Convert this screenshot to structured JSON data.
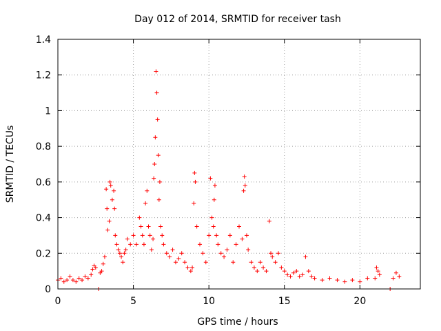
{
  "chart_data": {
    "type": "scatter",
    "title": "Day 012 of 2014, SRMTID for receiver tash",
    "xlabel": "GPS time / hours",
    "ylabel": "SRMTID / TECUs",
    "xlim": [
      0,
      24
    ],
    "ylim": [
      0,
      1.4
    ],
    "xticks": [
      0,
      5,
      10,
      15,
      20
    ],
    "xtick_labels": [
      "0",
      "5",
      "10",
      "15",
      "20"
    ],
    "yticks": [
      0,
      0.2,
      0.4,
      0.6,
      0.8,
      1.0,
      1.2,
      1.4
    ],
    "ytick_labels": [
      "0",
      "0.2",
      "0.4",
      "0.6",
      "0.8",
      "1",
      "1.2",
      "1.4"
    ],
    "grid": true,
    "marker": "+",
    "marker_color": "#ff0000",
    "series": [
      {
        "name": "SRMTID",
        "x": [
          0.0,
          0.2,
          0.4,
          0.6,
          0.8,
          1.0,
          1.2,
          1.4,
          1.6,
          1.8,
          2.0,
          2.2,
          2.3,
          2.4,
          2.5,
          2.7,
          2.8,
          2.9,
          3.0,
          3.1,
          3.2,
          3.25,
          3.3,
          3.4,
          3.45,
          3.5,
          3.6,
          3.7,
          3.75,
          3.8,
          3.9,
          4.0,
          4.1,
          4.2,
          4.3,
          4.4,
          4.5,
          4.6,
          4.8,
          5.0,
          5.2,
          5.4,
          5.5,
          5.6,
          5.7,
          5.8,
          5.9,
          6.0,
          6.1,
          6.2,
          6.3,
          6.35,
          6.4,
          6.45,
          6.5,
          6.55,
          6.6,
          6.65,
          6.7,
          6.75,
          6.8,
          6.9,
          7.0,
          7.2,
          7.4,
          7.6,
          7.8,
          8.0,
          8.2,
          8.4,
          8.6,
          8.8,
          8.9,
          9.0,
          9.05,
          9.1,
          9.2,
          9.4,
          9.6,
          9.8,
          10.0,
          10.1,
          10.2,
          10.3,
          10.35,
          10.4,
          10.5,
          10.6,
          10.8,
          11.0,
          11.2,
          11.4,
          11.6,
          11.8,
          12.0,
          12.2,
          12.3,
          12.35,
          12.4,
          12.5,
          12.6,
          12.8,
          13.0,
          13.2,
          13.4,
          13.6,
          13.8,
          14.0,
          14.1,
          14.2,
          14.4,
          14.6,
          14.8,
          15.0,
          15.2,
          15.4,
          15.6,
          15.8,
          16.0,
          16.2,
          16.4,
          16.6,
          16.8,
          17.0,
          17.5,
          18.0,
          18.5,
          19.0,
          19.5,
          20.0,
          20.5,
          21.0,
          21.1,
          21.2,
          21.3,
          22.0,
          22.2,
          22.4,
          22.6
        ],
        "y": [
          0.05,
          0.06,
          0.04,
          0.05,
          0.07,
          0.05,
          0.04,
          0.06,
          0.05,
          0.07,
          0.06,
          0.08,
          0.11,
          0.13,
          0.12,
          0.0,
          0.09,
          0.1,
          0.14,
          0.18,
          0.56,
          0.45,
          0.33,
          0.38,
          0.6,
          0.58,
          0.5,
          0.55,
          0.45,
          0.3,
          0.25,
          0.22,
          0.2,
          0.18,
          0.15,
          0.2,
          0.22,
          0.28,
          0.25,
          0.3,
          0.25,
          0.4,
          0.35,
          0.3,
          0.25,
          0.48,
          0.55,
          0.35,
          0.3,
          0.22,
          0.28,
          0.62,
          0.7,
          0.85,
          1.22,
          1.1,
          0.95,
          0.75,
          0.5,
          0.6,
          0.35,
          0.3,
          0.25,
          0.2,
          0.18,
          0.22,
          0.15,
          0.17,
          0.2,
          0.15,
          0.12,
          0.1,
          0.12,
          0.48,
          0.65,
          0.6,
          0.35,
          0.25,
          0.2,
          0.15,
          0.3,
          0.62,
          0.4,
          0.35,
          0.5,
          0.58,
          0.3,
          0.25,
          0.2,
          0.18,
          0.22,
          0.3,
          0.15,
          0.25,
          0.35,
          0.28,
          0.55,
          0.63,
          0.58,
          0.3,
          0.22,
          0.15,
          0.12,
          0.1,
          0.15,
          0.12,
          0.1,
          0.38,
          0.2,
          0.18,
          0.15,
          0.2,
          0.12,
          0.1,
          0.08,
          0.07,
          0.09,
          0.1,
          0.07,
          0.08,
          0.18,
          0.1,
          0.07,
          0.06,
          0.05,
          0.06,
          0.05,
          0.04,
          0.05,
          0.04,
          0.06,
          0.06,
          0.12,
          0.1,
          0.08,
          0.0,
          0.06,
          0.09,
          0.07
        ]
      }
    ]
  }
}
